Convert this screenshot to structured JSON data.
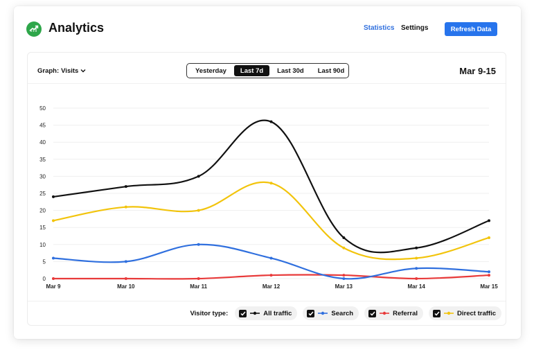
{
  "header": {
    "app_title": "Analytics",
    "logo_icon": "growth-chart-icon",
    "nav": [
      {
        "label": "Statistics",
        "active": true
      },
      {
        "label": "Settings",
        "active": false
      }
    ],
    "refresh_label": "Refresh Data",
    "accent": "#2774ec"
  },
  "controls": {
    "graph_label": "Graph:",
    "graph_value": "Visits",
    "ranges": [
      {
        "label": "Yesterday",
        "active": false
      },
      {
        "label": "Last 7d",
        "active": true
      },
      {
        "label": "Last 30d",
        "active": false
      },
      {
        "label": "Last 90d",
        "active": false
      }
    ],
    "date_range": "Mar 9-15"
  },
  "legend": {
    "title": "Visitor type:",
    "items": [
      {
        "label": "All traffic",
        "checked": true
      },
      {
        "label": "Search",
        "checked": true
      },
      {
        "label": "Referral",
        "checked": true
      },
      {
        "label": "Direct traffic",
        "checked": true
      }
    ]
  },
  "chart_data": {
    "type": "line",
    "categories": [
      "Mar 9",
      "Mar 10",
      "Mar 11",
      "Mar 12",
      "Mar 13",
      "Mar 14",
      "Mar 15"
    ],
    "y_ticks": [
      0,
      5,
      10,
      15,
      20,
      25,
      30,
      35,
      40,
      45,
      50
    ],
    "ylim": [
      0,
      50
    ],
    "grid": true,
    "smooth": true,
    "legend_position": "bottom-right",
    "series": [
      {
        "name": "All traffic",
        "color": "#111111",
        "values": [
          24,
          27,
          30,
          46,
          12,
          9,
          17
        ]
      },
      {
        "name": "Search",
        "color": "#2f6fde",
        "values": [
          6,
          5,
          10,
          6,
          0,
          3,
          2
        ]
      },
      {
        "name": "Referral",
        "color": "#e83a3a",
        "values": [
          0,
          0,
          0,
          1,
          1,
          0,
          1
        ]
      },
      {
        "name": "Direct traffic",
        "color": "#f2c40c",
        "values": [
          17,
          21,
          20,
          28,
          9,
          6,
          12
        ]
      }
    ]
  }
}
